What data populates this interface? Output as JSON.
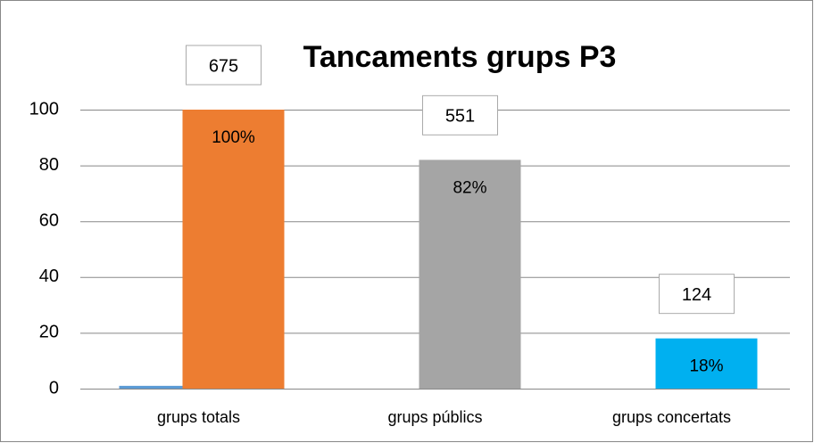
{
  "chart_data": {
    "type": "bar",
    "title": "Tancaments grups P3",
    "categories": [
      "grups totals",
      "grups públics",
      "grups concertats"
    ],
    "series": [
      {
        "color": "#5b9bd5",
        "values": [
          1,
          0,
          0
        ]
      },
      {
        "colors": [
          "#ed7d31",
          "#a5a5a5",
          "#00b0f0"
        ],
        "values": [
          100,
          82,
          18
        ],
        "value_labels": [
          "100%",
          "82%",
          "18%"
        ]
      }
    ],
    "annotations": [
      "675",
      "551",
      "124"
    ],
    "ylim": [
      0,
      100
    ],
    "yticks": [
      0,
      20,
      40,
      60,
      80,
      100
    ],
    "grid": true
  }
}
